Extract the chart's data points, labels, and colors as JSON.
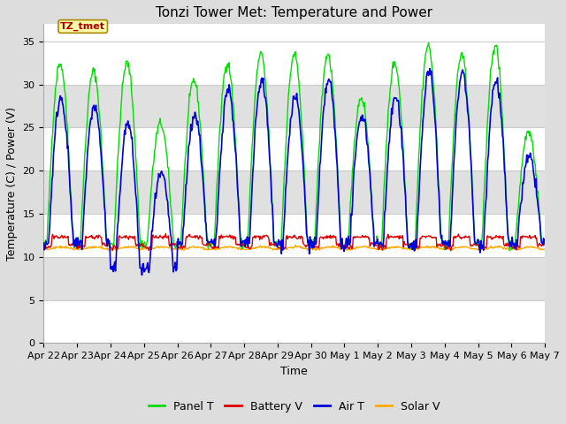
{
  "title": "Tonzi Tower Met: Temperature and Power",
  "xlabel": "Time",
  "ylabel": "Temperature (C) / Power (V)",
  "ylim": [
    0,
    37
  ],
  "yticks": [
    0,
    5,
    10,
    15,
    20,
    25,
    30,
    35
  ],
  "x_tick_labels": [
    "Apr 22",
    "Apr 23",
    "Apr 24",
    "Apr 25",
    "Apr 26",
    "Apr 27",
    "Apr 28",
    "Apr 29",
    "Apr 30",
    "May 1",
    "May 2",
    "May 3",
    "May 4",
    "May 5",
    "May 6",
    "May 7"
  ],
  "legend_labels": [
    "Panel T",
    "Battery V",
    "Air T",
    "Solar V"
  ],
  "legend_colors": [
    "#00dd00",
    "#dd0000",
    "#0000dd",
    "#ffaa00"
  ],
  "panel_color": "#00dd00",
  "battery_color": "#dd0000",
  "air_color": "#0000dd",
  "solar_color": "#ffaa00",
  "annotation_text": "TZ_tmet",
  "annotation_bg": "#ffffaa",
  "annotation_border": "#aa8800",
  "annotation_text_color": "#aa0000",
  "background_color": "#dddddd",
  "plot_bg_color": "#ffffff",
  "band_color_light": "#ffffff",
  "band_color_dark": "#e0e0e0",
  "grid_color": "#cccccc",
  "title_fontsize": 11,
  "label_fontsize": 9,
  "tick_fontsize": 8,
  "legend_fontsize": 9
}
